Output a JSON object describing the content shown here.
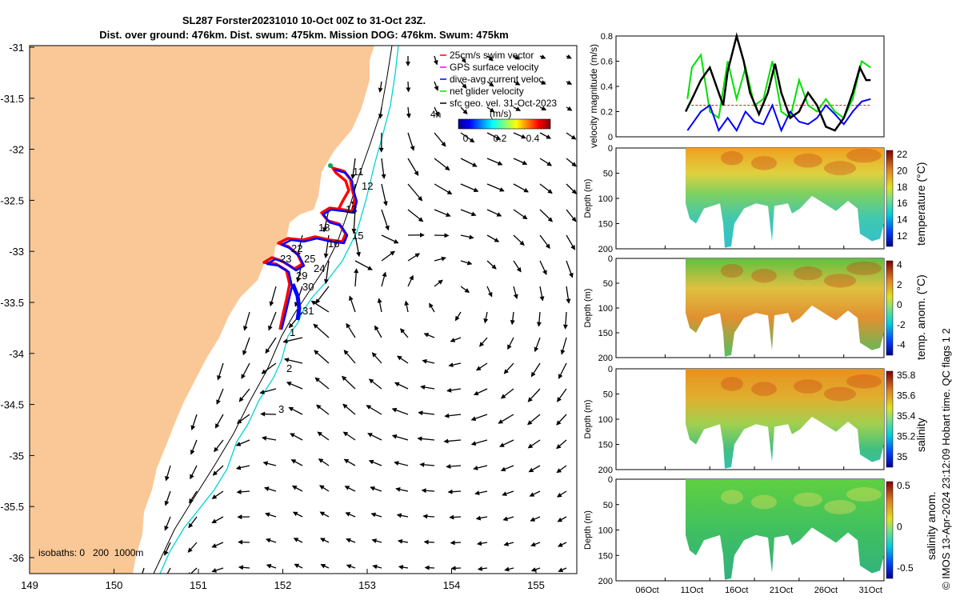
{
  "header": {
    "title_line1": "SL287 Forster20231010 10-Oct 00Z to 31-Oct 23Z.",
    "title_line2": "Dist. over ground: 476km. Dist. swum: 475km. Mission DOG: 476km. Swum: 475km"
  },
  "map": {
    "lon_ticks": [
      "149",
      "150",
      "151",
      "152",
      "153",
      "154",
      "155"
    ],
    "lat_ticks": [
      "-31",
      "-31.5",
      "-32",
      "-32.5",
      "-33",
      "-33.5",
      "-34",
      "-34.5",
      "-35",
      "-35.5",
      "-36"
    ],
    "legend": [
      "25cm/s swim vector",
      "GPS surface velocity",
      "dive-avg current veloc.",
      "net glider velocity",
      "sfc geo. vel. 31-Oct-2023"
    ],
    "colorbar_title": "(m/s)",
    "colorbar_ticks": [
      "0",
      "0.2",
      "0.4"
    ],
    "label_4h": "4h",
    "isobaths": "isobaths: 0   200  1000m",
    "day_labels": [
      "11",
      "12",
      "13",
      "15",
      "18",
      "22",
      "25",
      "24",
      "29",
      "30",
      "31",
      "1",
      "2",
      "3",
      "16",
      "23"
    ],
    "colors": {
      "land": "#f9c896",
      "track_red": "#ff0000",
      "track_blue": "#0000ff",
      "isobath_200": "#000000",
      "isobath_1000": "#00d4d4"
    }
  },
  "side": {
    "date_ticks": [
      "06Oct",
      "11Oct",
      "16Oct",
      "21Oct",
      "26Oct",
      "31Oct"
    ],
    "depth_label": "Depth (m)",
    "depth_ticks": [
      "0",
      "50",
      "100",
      "150",
      "200"
    ],
    "credit": "© IMOS 13-Apr-2024 23:12:09 Hobart time. QC flags 1  2"
  },
  "chart_data": [
    {
      "type": "line",
      "title": "",
      "ylabel": "velocity magnitude (m/s)",
      "ylim": [
        0,
        0.8
      ],
      "yticks": [
        "0",
        "0.2",
        "0.4",
        "0.6",
        "0.8"
      ],
      "x_range_days": [
        0,
        30
      ],
      "series": [
        {
          "name": "sfc geo. vel.",
          "color": "#000000",
          "x": [
            10.3,
            11,
            12,
            13,
            14,
            14.5,
            15,
            16,
            16.8,
            17.5,
            18.5,
            19.5,
            20.3,
            21,
            22,
            23,
            24,
            25,
            26,
            27,
            28,
            29,
            29.8,
            30.5,
            31
          ],
          "values": [
            0.2,
            0.3,
            0.45,
            0.55,
            0.35,
            0.25,
            0.52,
            0.8,
            0.6,
            0.35,
            0.18,
            0.35,
            0.58,
            0.35,
            0.15,
            0.2,
            0.35,
            0.25,
            0.08,
            0.05,
            0.15,
            0.35,
            0.55,
            0.45,
            0.45
          ]
        },
        {
          "name": "dive-avg current veloc.",
          "color": "#0000ff",
          "x": [
            10.5,
            11,
            12,
            13,
            14,
            15,
            16,
            17,
            18,
            19,
            20,
            21,
            22,
            23,
            24,
            25,
            26,
            27,
            28,
            29,
            30,
            31
          ],
          "values": [
            0.05,
            0.1,
            0.2,
            0.25,
            0.05,
            0.15,
            0.05,
            0.2,
            0.12,
            0.1,
            0.25,
            0.05,
            0.2,
            0.12,
            0.1,
            0.15,
            0.25,
            0.18,
            0.1,
            0.2,
            0.28,
            0.3
          ]
        },
        {
          "name": "net glider velocity",
          "color": "#00e000",
          "x": [
            10.5,
            11,
            12,
            13,
            14,
            15,
            16,
            17,
            18,
            19,
            20,
            21,
            22,
            23,
            24,
            25,
            26,
            27,
            28,
            29,
            30,
            31
          ],
          "values": [
            0.3,
            0.55,
            0.65,
            0.2,
            0.15,
            0.6,
            0.3,
            0.55,
            0.25,
            0.3,
            0.6,
            0.2,
            0.15,
            0.45,
            0.25,
            0.2,
            0.3,
            0.2,
            0.15,
            0.3,
            0.6,
            0.55
          ]
        },
        {
          "name": "25cm/s swim vector",
          "color": "#ff0000",
          "x": [
            10.5,
            31
          ],
          "values": [
            0.25,
            0.25
          ]
        }
      ]
    },
    {
      "type": "heatmap",
      "ylabel": "Depth (m)",
      "colorbar_label": "temperature (°C)",
      "colorbar_ticks": [
        "12",
        "14",
        "16",
        "18",
        "20",
        "22"
      ],
      "clim": [
        11,
        23
      ],
      "ylim": [
        0,
        200
      ],
      "x_range_days": [
        10.3,
        31
      ]
    },
    {
      "type": "heatmap",
      "ylabel": "Depth (m)",
      "colorbar_label": "temp. anom. (°C)",
      "colorbar_ticks": [
        "4",
        "2",
        "0",
        "-2",
        "-4"
      ],
      "clim": [
        -4,
        4
      ],
      "ylim": [
        0,
        200
      ],
      "x_range_days": [
        10.3,
        31
      ]
    },
    {
      "type": "heatmap",
      "ylabel": "Depth (m)",
      "colorbar_label": "salinity",
      "colorbar_ticks": [
        "35.8",
        "35.6",
        "35.4",
        "35.2",
        "35"
      ],
      "clim": [
        34.9,
        35.8
      ],
      "ylim": [
        0,
        200
      ],
      "x_range_days": [
        10.3,
        31
      ]
    },
    {
      "type": "heatmap",
      "ylabel": "Depth (m)",
      "colorbar_label": "salinity anom.",
      "colorbar_ticks": [
        "0.5",
        "0",
        "-0.5"
      ],
      "clim": [
        -0.5,
        0.5
      ],
      "ylim": [
        0,
        200
      ],
      "x_range_days": [
        10.3,
        31
      ]
    }
  ]
}
